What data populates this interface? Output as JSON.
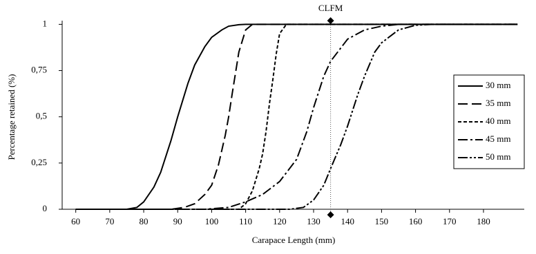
{
  "chart_data": {
    "type": "line",
    "xlabel": "Carapace Length  (mm)",
    "ylabel": "Percentage retained  (%)",
    "xlim": [
      56,
      192
    ],
    "ylim": [
      0,
      1.02
    ],
    "xticks": [
      60,
      70,
      80,
      90,
      100,
      110,
      120,
      130,
      140,
      150,
      160,
      170,
      180
    ],
    "yticks": [
      0,
      {
        "value": 0.25,
        "label": "0,25"
      },
      {
        "value": 0.5,
        "label": "0,5"
      },
      {
        "value": 0.75,
        "label": "0,75"
      },
      1
    ],
    "legend": "right",
    "vline": {
      "x": 135,
      "label": "CLFM"
    },
    "series": [
      {
        "name": "30 mm",
        "color": "#000000",
        "dash": "none",
        "x": [
          60,
          75,
          78,
          80,
          83,
          85,
          88,
          90,
          93,
          95,
          98,
          100,
          103,
          105,
          108,
          110,
          190
        ],
        "values": [
          0,
          0,
          0.01,
          0.04,
          0.12,
          0.2,
          0.37,
          0.5,
          0.68,
          0.78,
          0.88,
          0.93,
          0.97,
          0.99,
          0.998,
          1,
          1
        ]
      },
      {
        "name": "35 mm",
        "color": "#000000",
        "dash": "14,6",
        "x": [
          60,
          88,
          92,
          95,
          98,
          100,
          102,
          104,
          105,
          106,
          108,
          110,
          112,
          190
        ],
        "values": [
          0,
          0,
          0.01,
          0.03,
          0.08,
          0.13,
          0.24,
          0.4,
          0.5,
          0.62,
          0.85,
          0.97,
          1,
          1
        ]
      },
      {
        "name": "40 mm",
        "color": "#000000",
        "dash": "5,3",
        "x": [
          60,
          108,
          110,
          112,
          114,
          115,
          116,
          117,
          118,
          119,
          120,
          122,
          190
        ],
        "values": [
          0,
          0,
          0.03,
          0.1,
          0.22,
          0.3,
          0.42,
          0.57,
          0.7,
          0.84,
          0.95,
          1,
          1
        ]
      },
      {
        "name": "45 mm",
        "color": "#000000",
        "dash": "14,4,3,4",
        "x": [
          60,
          98,
          105,
          110,
          115,
          120,
          125,
          128,
          130,
          133,
          135,
          140,
          145,
          150,
          155,
          190
        ],
        "values": [
          0,
          0,
          0.01,
          0.04,
          0.08,
          0.15,
          0.27,
          0.42,
          0.55,
          0.72,
          0.8,
          0.92,
          0.97,
          0.99,
          1,
          1
        ]
      },
      {
        "name": "50 mm",
        "color": "#000000",
        "dash": "14,3,3,3,3,3",
        "x": [
          60,
          123,
          127,
          130,
          133,
          135,
          138,
          140,
          143,
          145,
          148,
          150,
          155,
          160,
          165,
          190
        ],
        "values": [
          0,
          0,
          0.01,
          0.05,
          0.13,
          0.22,
          0.35,
          0.45,
          0.62,
          0.72,
          0.85,
          0.9,
          0.97,
          0.995,
          1,
          1
        ]
      }
    ]
  }
}
